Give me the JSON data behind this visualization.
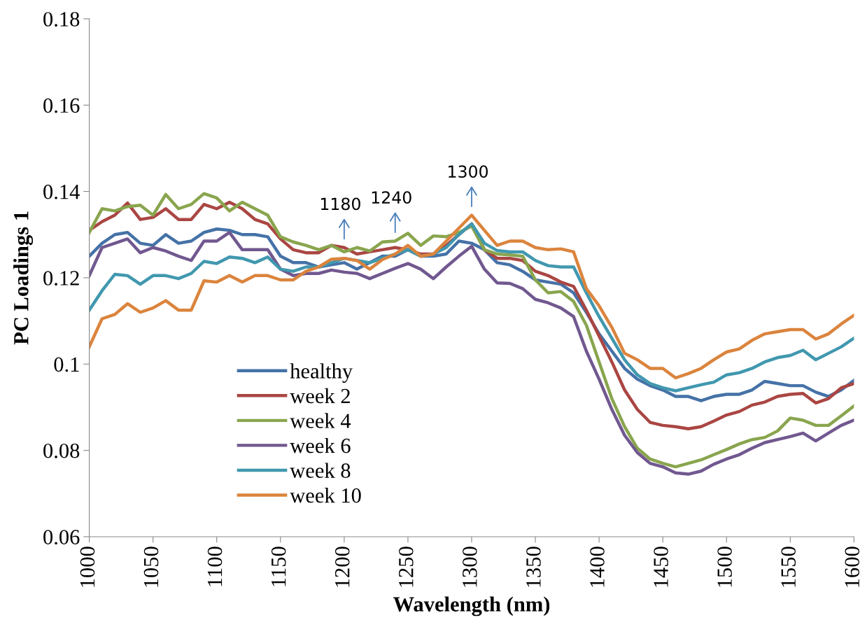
{
  "chart_data": {
    "type": "line",
    "xlabel": "Wavelength (nm)",
    "ylabel": "PC Loadings 1",
    "x": [
      1000,
      1010,
      1020,
      1030,
      1040,
      1050,
      1060,
      1070,
      1080,
      1090,
      1100,
      1110,
      1120,
      1130,
      1140,
      1150,
      1160,
      1170,
      1180,
      1190,
      1200,
      1210,
      1220,
      1230,
      1240,
      1250,
      1260,
      1270,
      1280,
      1290,
      1300,
      1310,
      1320,
      1330,
      1340,
      1350,
      1360,
      1370,
      1380,
      1390,
      1400,
      1410,
      1420,
      1430,
      1440,
      1450,
      1460,
      1470,
      1480,
      1490,
      1500,
      1510,
      1520,
      1530,
      1540,
      1550,
      1560,
      1570,
      1580,
      1590,
      1600
    ],
    "series": [
      {
        "name": "healthy",
        "color": "#4572a7",
        "values": [
          0.125,
          0.128,
          0.13,
          0.1305,
          0.128,
          0.1275,
          0.13,
          0.128,
          0.1285,
          0.1305,
          0.1313,
          0.131,
          0.13,
          0.13,
          0.1295,
          0.125,
          0.1235,
          0.1235,
          0.1225,
          0.123,
          0.1235,
          0.122,
          0.1235,
          0.125,
          0.125,
          0.1265,
          0.125,
          0.125,
          0.1255,
          0.1285,
          0.128,
          0.1265,
          0.1235,
          0.123,
          0.1215,
          0.1195,
          0.119,
          0.1185,
          0.1165,
          0.112,
          0.107,
          0.103,
          0.099,
          0.0965,
          0.095,
          0.094,
          0.0925,
          0.0925,
          0.0915,
          0.0925,
          0.093,
          0.093,
          0.094,
          0.096,
          0.0955,
          0.095,
          0.095,
          0.0935,
          0.0925,
          0.094,
          0.0962
        ]
      },
      {
        "name": "week 2",
        "color": "#aa4643",
        "values": [
          0.131,
          0.133,
          0.1345,
          0.1373,
          0.1335,
          0.134,
          0.136,
          0.1335,
          0.1335,
          0.137,
          0.136,
          0.1375,
          0.136,
          0.1335,
          0.1325,
          0.129,
          0.1265,
          0.1258,
          0.1258,
          0.1275,
          0.127,
          0.1255,
          0.126,
          0.1265,
          0.127,
          0.1265,
          0.1255,
          0.1255,
          0.1275,
          0.13,
          0.1325,
          0.1265,
          0.1245,
          0.1245,
          0.124,
          0.1215,
          0.1205,
          0.119,
          0.118,
          0.1125,
          0.1065,
          0.1005,
          0.094,
          0.0895,
          0.0865,
          0.0858,
          0.0855,
          0.085,
          0.0855,
          0.0868,
          0.0882,
          0.089,
          0.0905,
          0.0912,
          0.0925,
          0.093,
          0.0932,
          0.091,
          0.092,
          0.0945,
          0.0955
        ]
      },
      {
        "name": "week 4",
        "color": "#89a54e",
        "values": [
          0.1305,
          0.136,
          0.1355,
          0.1365,
          0.1368,
          0.1345,
          0.1393,
          0.136,
          0.137,
          0.1395,
          0.1385,
          0.1355,
          0.1375,
          0.136,
          0.1345,
          0.1295,
          0.1283,
          0.1275,
          0.1265,
          0.1275,
          0.126,
          0.127,
          0.1262,
          0.1283,
          0.1285,
          0.1303,
          0.1275,
          0.1297,
          0.1295,
          0.1305,
          0.132,
          0.1265,
          0.1255,
          0.1253,
          0.125,
          0.1195,
          0.1165,
          0.1168,
          0.1145,
          0.109,
          0.1005,
          0.092,
          0.0855,
          0.0805,
          0.078,
          0.077,
          0.0762,
          0.077,
          0.0778,
          0.079,
          0.0802,
          0.0815,
          0.0825,
          0.083,
          0.0845,
          0.0875,
          0.087,
          0.0858,
          0.0858,
          0.088,
          0.0903
        ]
      },
      {
        "name": "week 6",
        "color": "#71588f",
        "values": [
          0.1205,
          0.127,
          0.128,
          0.129,
          0.1258,
          0.127,
          0.1262,
          0.125,
          0.124,
          0.1285,
          0.1285,
          0.1305,
          0.1265,
          0.1265,
          0.1265,
          0.122,
          0.1205,
          0.121,
          0.121,
          0.1218,
          0.1213,
          0.121,
          0.1198,
          0.121,
          0.1222,
          0.1233,
          0.122,
          0.1198,
          0.1225,
          0.125,
          0.1273,
          0.122,
          0.1188,
          0.1187,
          0.1175,
          0.115,
          0.1142,
          0.113,
          0.111,
          0.103,
          0.0965,
          0.0895,
          0.0835,
          0.0795,
          0.077,
          0.0762,
          0.0748,
          0.0745,
          0.0752,
          0.0768,
          0.078,
          0.079,
          0.0805,
          0.0818,
          0.0825,
          0.0832,
          0.084,
          0.0822,
          0.084,
          0.0858,
          0.087
        ]
      },
      {
        "name": "week 8",
        "color": "#4198af",
        "values": [
          0.1125,
          0.117,
          0.1208,
          0.1205,
          0.1185,
          0.1205,
          0.1205,
          0.1198,
          0.121,
          0.1238,
          0.1233,
          0.1248,
          0.1245,
          0.1235,
          0.1248,
          0.122,
          0.1215,
          0.1225,
          0.1225,
          0.1235,
          0.1245,
          0.124,
          0.1235,
          0.1245,
          0.1255,
          0.1265,
          0.125,
          0.1255,
          0.127,
          0.13,
          0.1325,
          0.128,
          0.1263,
          0.126,
          0.126,
          0.124,
          0.1228,
          0.1225,
          0.1225,
          0.1165,
          0.111,
          0.106,
          0.101,
          0.0975,
          0.0955,
          0.0945,
          0.0938,
          0.0945,
          0.0952,
          0.0958,
          0.0975,
          0.098,
          0.099,
          0.1005,
          0.1015,
          0.102,
          0.1032,
          0.101,
          0.1025,
          0.104,
          0.106
        ]
      },
      {
        "name": "week 10",
        "color": "#db843d",
        "values": [
          0.104,
          0.1105,
          0.1115,
          0.114,
          0.112,
          0.113,
          0.1147,
          0.1125,
          0.1125,
          0.1193,
          0.119,
          0.1205,
          0.119,
          0.1205,
          0.1205,
          0.1195,
          0.1195,
          0.1215,
          0.1225,
          0.1243,
          0.1245,
          0.124,
          0.122,
          0.1242,
          0.1255,
          0.1275,
          0.125,
          0.1255,
          0.1285,
          0.1315,
          0.1345,
          0.131,
          0.1275,
          0.1285,
          0.1285,
          0.127,
          0.1265,
          0.1267,
          0.126,
          0.1175,
          0.1135,
          0.1085,
          0.1025,
          0.101,
          0.099,
          0.099,
          0.0968,
          0.0978,
          0.099,
          0.101,
          0.1028,
          0.1035,
          0.1055,
          0.107,
          0.1075,
          0.108,
          0.108,
          0.1058,
          0.107,
          0.1093,
          0.1113
        ]
      }
    ],
    "xlim": [
      1000,
      1600
    ],
    "xticks": [
      1000,
      1050,
      1100,
      1150,
      1200,
      1250,
      1300,
      1350,
      1400,
      1450,
      1500,
      1550,
      1600
    ],
    "ylim": [
      0.06,
      0.18
    ],
    "yticks": [
      0.06,
      0.08,
      {
        "value": 0.1,
        "label": "0.1"
      },
      0.12,
      0.14,
      0.16,
      0.18
    ],
    "annotations": [
      {
        "text": "1180",
        "x": 1200,
        "y": 0.127
      },
      {
        "text": "1240",
        "x": 1240,
        "y": 0.1285
      },
      {
        "text": "1300",
        "x": 1300,
        "y": 0.1345
      }
    ],
    "grid": false,
    "legend": "bottom left",
    "marker": "none",
    "line_style": "solid"
  }
}
